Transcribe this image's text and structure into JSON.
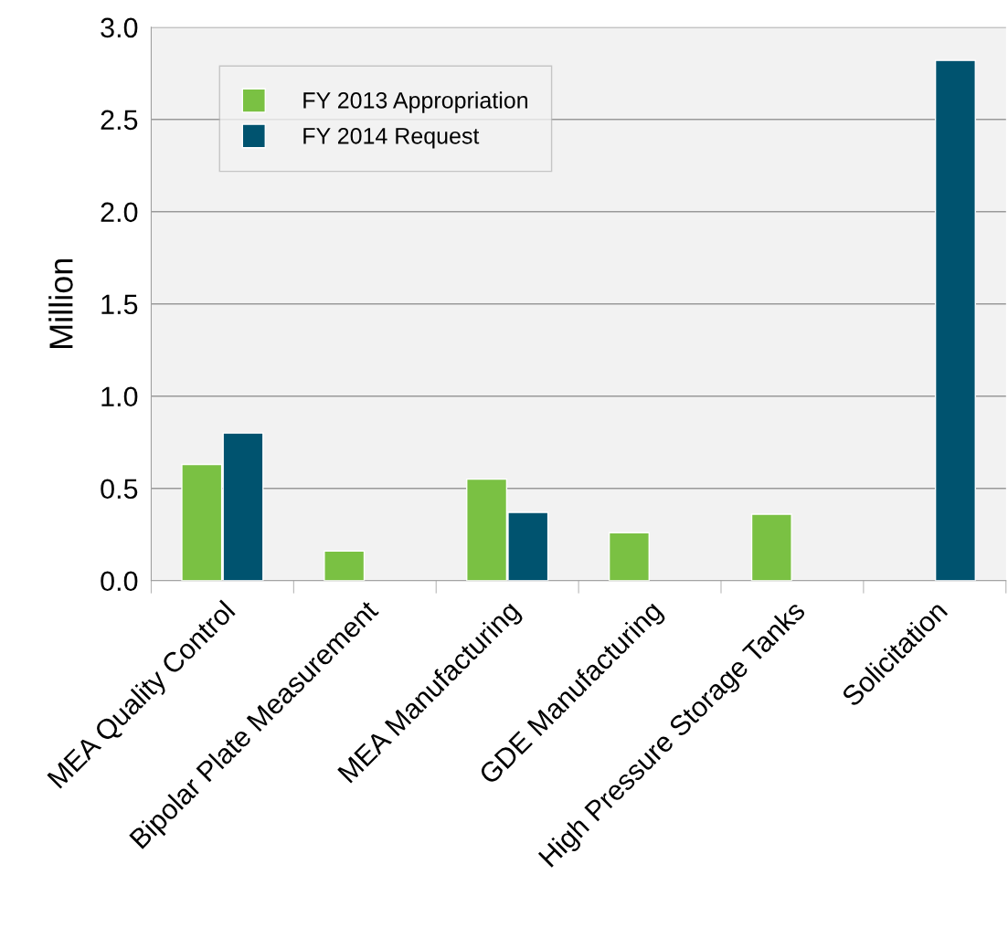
{
  "chart_data": {
    "type": "bar",
    "ylabel": "Million",
    "categories": [
      "MEA Quality Control",
      "Bipolar Plate Measurement",
      "MEA Manufacturing",
      "GDE Manufacturing",
      "High Pressure Storage Tanks",
      "Solicitation"
    ],
    "series": [
      {
        "name": "FY 2013 Appropriation",
        "color": "#7ac143",
        "values": [
          0.63,
          0.16,
          0.55,
          0.26,
          0.36,
          null
        ]
      },
      {
        "name": "FY 2014 Request",
        "color": "#00536f",
        "values": [
          0.8,
          null,
          0.37,
          null,
          null,
          2.82
        ]
      }
    ],
    "ylim": [
      0,
      3.0
    ],
    "yticks": [
      {
        "value": 0,
        "label": "0.0"
      },
      {
        "value": 0.5,
        "label": "0.5"
      },
      {
        "value": 1.0,
        "label": "1.0"
      },
      {
        "value": 1.5,
        "label": "1.5"
      },
      {
        "value": 2.0,
        "label": "2.0"
      },
      {
        "value": 2.5,
        "label": "2.5"
      },
      {
        "value": 3.0,
        "label": "3.0"
      }
    ],
    "grid": "y",
    "legend": "top left"
  }
}
